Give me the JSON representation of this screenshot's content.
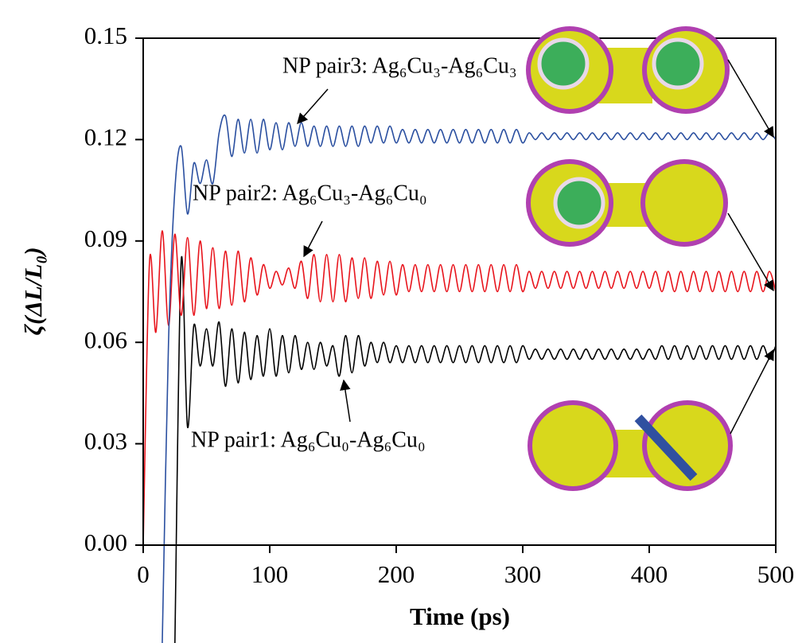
{
  "chart_data": {
    "type": "line",
    "xlabel": "Time (ps)",
    "ylabel": "ζ(ΔL/L₀)",
    "xlim": [
      0,
      500
    ],
    "xticks": [
      0,
      100,
      200,
      300,
      400,
      500
    ],
    "ylim": [
      0,
      0.15
    ],
    "yticks": [
      {
        "value": 0,
        "label": "0.00"
      },
      0.03,
      0.06,
      0.09,
      0.12,
      0.15
    ],
    "x": [
      0,
      5,
      10,
      15,
      20,
      25,
      30,
      35,
      40,
      45,
      50,
      55,
      60,
      65,
      70,
      75,
      80,
      85,
      90,
      95,
      100,
      105,
      110,
      115,
      120,
      125,
      130,
      135,
      140,
      145,
      150,
      155,
      160,
      165,
      170,
      175,
      180,
      185,
      190,
      195,
      200,
      205,
      210,
      215,
      220,
      225,
      230,
      235,
      240,
      245,
      250,
      255,
      260,
      265,
      270,
      275,
      280,
      285,
      290,
      295,
      300,
      305,
      310,
      315,
      320,
      325,
      330,
      335,
      340,
      345,
      350,
      355,
      360,
      365,
      370,
      375,
      380,
      385,
      390,
      395,
      400,
      405,
      410,
      415,
      420,
      425,
      430,
      435,
      440,
      445,
      450,
      455,
      460,
      465,
      470,
      475,
      480,
      485,
      490,
      495,
      500
    ],
    "series": [
      {
        "name": "NP pair1: Ag₆Cu₀-Ag₆Cu₀",
        "color": "#000000",
        "values": [
          null,
          null,
          null,
          null,
          null,
          -0.03,
          0.084,
          0.035,
          0.065,
          0.053,
          0.064,
          0.053,
          0.066,
          0.047,
          0.064,
          0.048,
          0.063,
          0.049,
          0.062,
          0.05,
          0.064,
          0.05,
          0.062,
          0.051,
          0.062,
          0.052,
          0.06,
          0.052,
          0.06,
          0.053,
          0.059,
          0.05,
          0.062,
          0.051,
          0.062,
          0.053,
          0.06,
          0.054,
          0.06,
          0.054,
          0.059,
          0.054,
          0.059,
          0.054,
          0.059,
          0.054,
          0.059,
          0.054,
          0.059,
          0.054,
          0.059,
          0.054,
          0.059,
          0.054,
          0.059,
          0.054,
          0.059,
          0.054,
          0.059,
          0.054,
          0.059,
          0.055,
          0.058,
          0.055,
          0.058,
          0.055,
          0.058,
          0.055,
          0.058,
          0.055,
          0.058,
          0.055,
          0.058,
          0.055,
          0.058,
          0.055,
          0.058,
          0.055,
          0.058,
          0.055,
          0.058,
          0.055,
          0.059,
          0.055,
          0.059,
          0.055,
          0.059,
          0.055,
          0.059,
          0.055,
          0.059,
          0.055,
          0.059,
          0.055,
          0.059,
          0.055,
          0.059,
          0.055,
          0.059,
          0.055,
          0.059
        ]
      },
      {
        "name": "NP pair2: Ag₆Cu₃-Ag₆Cu₀",
        "color": "#e8141c",
        "values": [
          0,
          0.084,
          0.063,
          0.093,
          0.065,
          0.092,
          0.068,
          0.091,
          0.068,
          0.09,
          0.07,
          0.088,
          0.07,
          0.087,
          0.071,
          0.087,
          0.072,
          0.085,
          0.074,
          0.083,
          0.076,
          0.081,
          0.077,
          0.082,
          0.076,
          0.084,
          0.073,
          0.086,
          0.072,
          0.086,
          0.072,
          0.086,
          0.072,
          0.085,
          0.073,
          0.085,
          0.073,
          0.084,
          0.074,
          0.084,
          0.074,
          0.083,
          0.075,
          0.083,
          0.075,
          0.083,
          0.075,
          0.083,
          0.075,
          0.083,
          0.075,
          0.083,
          0.075,
          0.083,
          0.075,
          0.083,
          0.075,
          0.083,
          0.075,
          0.083,
          0.075,
          0.081,
          0.076,
          0.081,
          0.076,
          0.081,
          0.076,
          0.081,
          0.076,
          0.081,
          0.076,
          0.081,
          0.076,
          0.081,
          0.076,
          0.081,
          0.076,
          0.081,
          0.076,
          0.081,
          0.076,
          0.081,
          0.075,
          0.081,
          0.075,
          0.081,
          0.075,
          0.081,
          0.075,
          0.081,
          0.075,
          0.081,
          0.075,
          0.081,
          0.075,
          0.081,
          0.075,
          0.081,
          0.075,
          0.081,
          0.075
        ]
      },
      {
        "name": "NP pair3: Ag₆Cu₃-Ag₆Cu₃",
        "color": "#2a4fa0",
        "values": [
          null,
          null,
          null,
          -0.03,
          0.06,
          0.105,
          0.118,
          0.098,
          0.113,
          0.107,
          0.114,
          0.107,
          0.122,
          0.127,
          0.115,
          0.126,
          0.116,
          0.126,
          0.116,
          0.126,
          0.117,
          0.125,
          0.117,
          0.125,
          0.118,
          0.125,
          0.118,
          0.124,
          0.118,
          0.124,
          0.118,
          0.124,
          0.118,
          0.124,
          0.118,
          0.124,
          0.119,
          0.124,
          0.119,
          0.124,
          0.119,
          0.123,
          0.119,
          0.123,
          0.119,
          0.123,
          0.119,
          0.123,
          0.119,
          0.123,
          0.119,
          0.123,
          0.119,
          0.123,
          0.119,
          0.123,
          0.119,
          0.123,
          0.119,
          0.123,
          0.119,
          0.122,
          0.12,
          0.122,
          0.12,
          0.122,
          0.12,
          0.122,
          0.12,
          0.122,
          0.12,
          0.122,
          0.12,
          0.122,
          0.12,
          0.122,
          0.12,
          0.122,
          0.12,
          0.122,
          0.12,
          0.122,
          0.12,
          0.122,
          0.12,
          0.122,
          0.12,
          0.122,
          0.12,
          0.122,
          0.12,
          0.122,
          0.12,
          0.122,
          0.12,
          0.122,
          0.12,
          0.122,
          0.12,
          0.122,
          0.12
        ]
      }
    ]
  }
}
